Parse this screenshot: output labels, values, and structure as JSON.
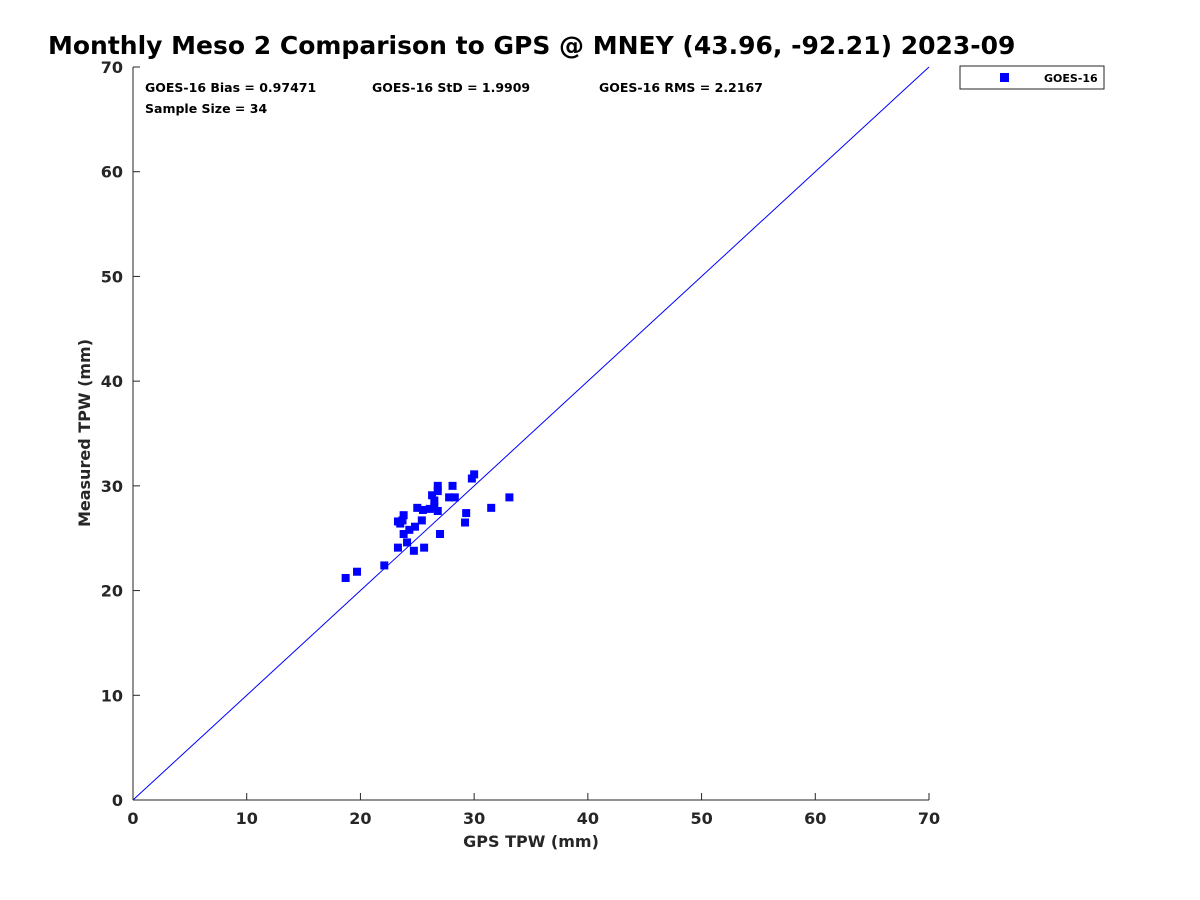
{
  "chart_data": {
    "type": "scatter",
    "title": "Monthly Meso 2 Comparison to GPS @ MNEY (43.96, -92.21) 2023-09",
    "xlabel": "GPS TPW (mm)",
    "ylabel": "Measured TPW (mm)",
    "xlim": [
      0,
      70
    ],
    "ylim": [
      0,
      70
    ],
    "xticks": [
      "0",
      "10",
      "20",
      "30",
      "40",
      "50",
      "60",
      "70"
    ],
    "yticks": [
      "0",
      "10",
      "20",
      "30",
      "40",
      "50",
      "60",
      "70"
    ],
    "grid": false,
    "legend_position": "top-right",
    "reference_line": {
      "x": [
        0,
        70
      ],
      "y": [
        0,
        70
      ],
      "color": "#0000ff"
    },
    "annotations": {
      "bias": "GOES-16 Bias = 0.97471",
      "std": "GOES-16 StD = 1.9909",
      "rms": "GOES-16 RMS = 2.2167",
      "sample_size": "Sample Size = 34"
    },
    "series": [
      {
        "name": "GOES-16",
        "color": "#0000ff",
        "marker": "square",
        "points": [
          [
            18.7,
            21.2
          ],
          [
            19.7,
            21.8
          ],
          [
            22.1,
            22.4
          ],
          [
            23.3,
            24.1
          ],
          [
            23.3,
            26.6
          ],
          [
            23.5,
            26.4
          ],
          [
            23.7,
            26.7
          ],
          [
            23.8,
            27.2
          ],
          [
            23.8,
            25.4
          ],
          [
            24.1,
            24.6
          ],
          [
            24.3,
            25.8
          ],
          [
            24.7,
            23.8
          ],
          [
            24.8,
            26.1
          ],
          [
            25.0,
            27.9
          ],
          [
            25.4,
            26.7
          ],
          [
            25.5,
            27.7
          ],
          [
            25.6,
            24.1
          ],
          [
            26.1,
            27.8
          ],
          [
            26.3,
            29.1
          ],
          [
            26.5,
            28.0
          ],
          [
            26.5,
            28.6
          ],
          [
            26.8,
            30.0
          ],
          [
            26.8,
            29.5
          ],
          [
            26.8,
            27.6
          ],
          [
            27.0,
            25.4
          ],
          [
            27.8,
            28.9
          ],
          [
            28.1,
            30.0
          ],
          [
            28.3,
            28.9
          ],
          [
            29.2,
            26.5
          ],
          [
            29.3,
            27.4
          ],
          [
            29.8,
            30.7
          ],
          [
            30.0,
            31.1
          ],
          [
            31.5,
            27.9
          ],
          [
            33.1,
            28.9
          ]
        ]
      }
    ]
  }
}
